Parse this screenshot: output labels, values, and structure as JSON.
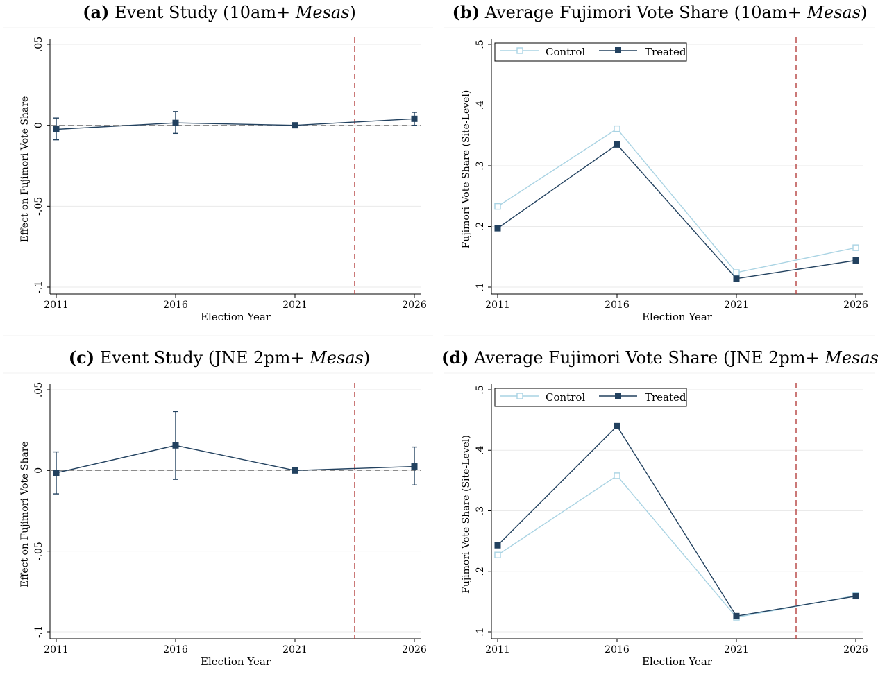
{
  "charts_meta": {
    "accent_navy": "#22415f",
    "accent_light": "#a9d3e3",
    "vline_color": "#b5403e"
  },
  "chart_data": [
    {
      "id": "a",
      "type": "line",
      "title": {
        "letter": "(a)",
        "pre": "Event Study (10am+ ",
        "italic": "Mesas",
        "post": ")"
      },
      "xlabel": "Election Year",
      "ylabel": "Effect on Fujimori Vote Share",
      "x": [
        2011,
        2016,
        2021,
        2026
      ],
      "xlim": [
        2011,
        2026
      ],
      "ylim": [
        -0.1,
        0.05
      ],
      "yticks": [
        -0.1,
        -0.05,
        0,
        0.05
      ],
      "ytick_labels": [
        "-.1",
        "-.05",
        "0",
        ".05"
      ],
      "xticks": [
        2011,
        2016,
        2021,
        2026
      ],
      "xtick_labels": [
        "2011",
        "2016",
        "2021",
        "2026"
      ],
      "vline": 2023.5,
      "zero_line": true,
      "series": [
        {
          "values": [
            -0.0025,
            0.0015,
            0.0,
            0.004
          ],
          "ci_low": [
            -0.009,
            -0.005,
            0.0,
            0.0
          ],
          "ci_high": [
            0.0045,
            0.0085,
            0.0,
            0.008
          ]
        }
      ]
    },
    {
      "id": "b",
      "type": "line",
      "title": {
        "letter": "(b)",
        "pre": "Average Fujimori Vote Share (10am+ ",
        "italic": "Mesas",
        "post": ")"
      },
      "xlabel": "Election Year",
      "ylabel": "Fujimori Vote Share (Site-Level)",
      "x": [
        2011,
        2016,
        2021,
        2026
      ],
      "xlim": [
        2011,
        2026
      ],
      "ylim": [
        0.1,
        0.5
      ],
      "yticks": [
        0.1,
        0.2,
        0.3,
        0.4,
        0.5
      ],
      "ytick_labels": [
        ".1",
        ".2",
        ".3",
        ".4",
        ".5"
      ],
      "xticks": [
        2011,
        2016,
        2021,
        2026
      ],
      "xtick_labels": [
        "2011",
        "2016",
        "2021",
        "2026"
      ],
      "vline": 2023.5,
      "legend": [
        "Control",
        "Treated"
      ],
      "series": [
        {
          "name": "Control",
          "values": [
            0.233,
            0.361,
            0.124,
            0.165
          ]
        },
        {
          "name": "Treated",
          "values": [
            0.197,
            0.335,
            0.114,
            0.144
          ]
        }
      ]
    },
    {
      "id": "c",
      "type": "line",
      "title": {
        "letter": "(c)",
        "pre": "Event Study (JNE 2pm+ ",
        "italic": "Mesas",
        "post": ")"
      },
      "xlabel": "Election Year",
      "ylabel": "Effect on Fujimori Vote Share",
      "x": [
        2011,
        2016,
        2021,
        2026
      ],
      "xlim": [
        2011,
        2026
      ],
      "ylim": [
        -0.1,
        0.05
      ],
      "yticks": [
        -0.1,
        -0.05,
        0,
        0.05
      ],
      "ytick_labels": [
        "-.1",
        "-.05",
        "0",
        ".05"
      ],
      "xticks": [
        2011,
        2016,
        2021,
        2026
      ],
      "xtick_labels": [
        "2011",
        "2016",
        "2021",
        "2026"
      ],
      "vline": 2023.5,
      "zero_line": true,
      "series": [
        {
          "values": [
            -0.0015,
            0.0155,
            0.0,
            0.0025
          ],
          "ci_low": [
            -0.0145,
            -0.0055,
            0.0,
            -0.009
          ],
          "ci_high": [
            0.0115,
            0.0365,
            0.0,
            0.0145
          ]
        }
      ]
    },
    {
      "id": "d",
      "type": "line",
      "title": {
        "letter": "(d)",
        "pre": "Average Fujimori Vote Share (JNE 2pm+ ",
        "italic": "Mesas",
        "post": ")"
      },
      "xlabel": "Election Year",
      "ylabel": "Fujimori Vote Share (Site-Level)",
      "x": [
        2011,
        2016,
        2021,
        2026
      ],
      "xlim": [
        2011,
        2026
      ],
      "ylim": [
        0.1,
        0.5
      ],
      "yticks": [
        0.1,
        0.2,
        0.3,
        0.4,
        0.5
      ],
      "ytick_labels": [
        ".1",
        ".2",
        ".3",
        ".4",
        ".5"
      ],
      "xticks": [
        2011,
        2016,
        2021,
        2026
      ],
      "xtick_labels": [
        "2011",
        "2016",
        "2021",
        "2026"
      ],
      "vline": 2023.5,
      "legend": [
        "Control",
        "Treated"
      ],
      "series": [
        {
          "name": "Control",
          "values": [
            0.227,
            0.358,
            0.124,
            0.16
          ]
        },
        {
          "name": "Treated",
          "values": [
            0.243,
            0.44,
            0.126,
            0.159
          ]
        }
      ]
    }
  ]
}
